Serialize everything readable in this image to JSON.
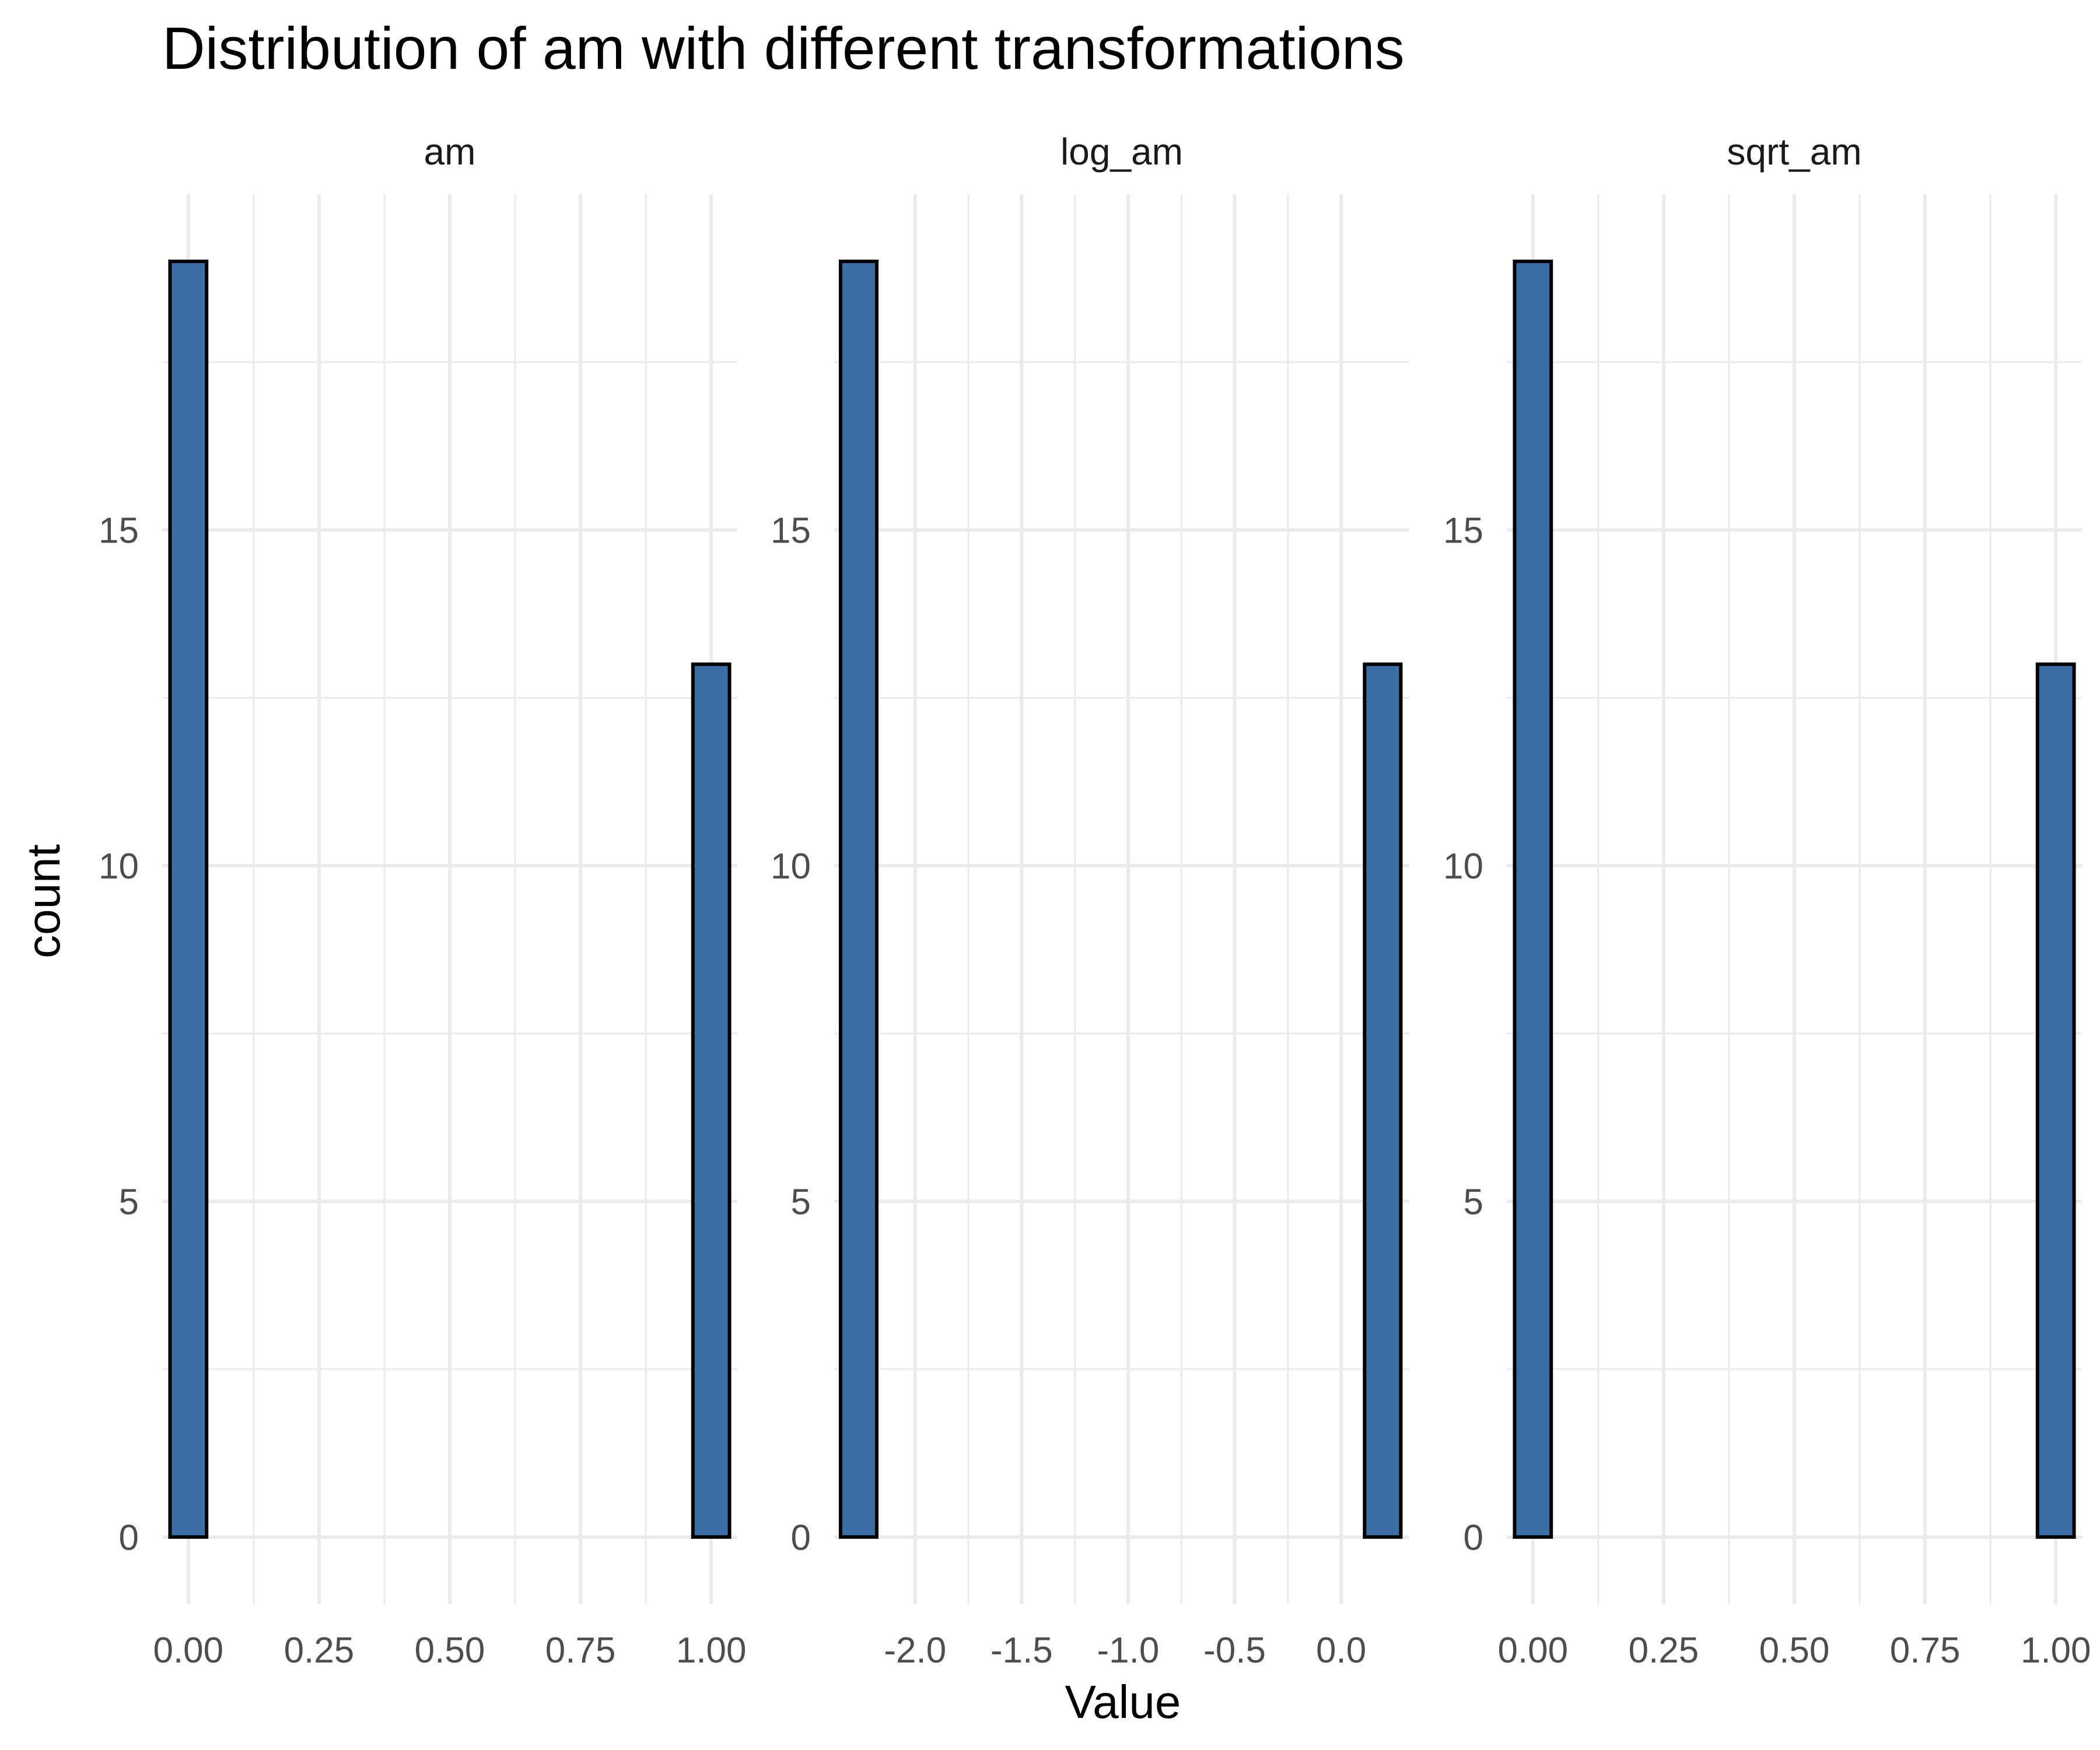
{
  "chart_data": {
    "type": "bar",
    "title": "Distribution of am with different transformations",
    "xlabel": "Value",
    "ylabel": "count",
    "ylim": [
      -1.0,
      20.0
    ],
    "y_ticks": [
      0,
      5,
      10,
      15
    ],
    "y_tick_labels": [
      "0",
      "5",
      "10",
      "15"
    ],
    "grid": true,
    "bar_fill": "#3A6EA5",
    "bar_outline": "#000000",
    "grid_color": "#EBEBEB",
    "text_color": "#4D4D4D",
    "panels": [
      {
        "name": "am",
        "xlim": [
          -0.05,
          1.05
        ],
        "x_ticks": [
          0,
          0.25,
          0.5,
          0.75,
          1.0
        ],
        "x_tick_labels": [
          "0.00",
          "0.25",
          "0.50",
          "0.75",
          "1.00"
        ],
        "bins": [
          {
            "x0": -0.035,
            "x1": 0.035,
            "count": 19
          },
          {
            "x0": 0.035,
            "x1": 0.965,
            "count": 0
          },
          {
            "x0": 0.965,
            "x1": 1.035,
            "count": 13
          }
        ]
      },
      {
        "name": "log_am",
        "xlim": [
          -2.38,
          0.32
        ],
        "x_ticks": [
          -2.0,
          -1.5,
          -1.0,
          -0.5,
          0.0
        ],
        "x_tick_labels": [
          "-2.0",
          "-1.5",
          "-1.0",
          "-0.5",
          "0.0"
        ],
        "bins": [
          {
            "x0": -2.35,
            "x1": -2.18,
            "count": 19
          },
          {
            "x0": -2.18,
            "x1": 0.11,
            "count": 0
          },
          {
            "x0": 0.11,
            "x1": 0.28,
            "count": 13
          }
        ]
      },
      {
        "name": "sqrt_am",
        "xlim": [
          -0.05,
          1.05
        ],
        "x_ticks": [
          0,
          0.25,
          0.5,
          0.75,
          1.0
        ],
        "x_tick_labels": [
          "0.00",
          "0.25",
          "0.50",
          "0.75",
          "1.00"
        ],
        "bins": [
          {
            "x0": -0.035,
            "x1": 0.035,
            "count": 19
          },
          {
            "x0": 0.035,
            "x1": 0.965,
            "count": 0
          },
          {
            "x0": 0.965,
            "x1": 1.035,
            "count": 13
          }
        ]
      }
    ]
  }
}
